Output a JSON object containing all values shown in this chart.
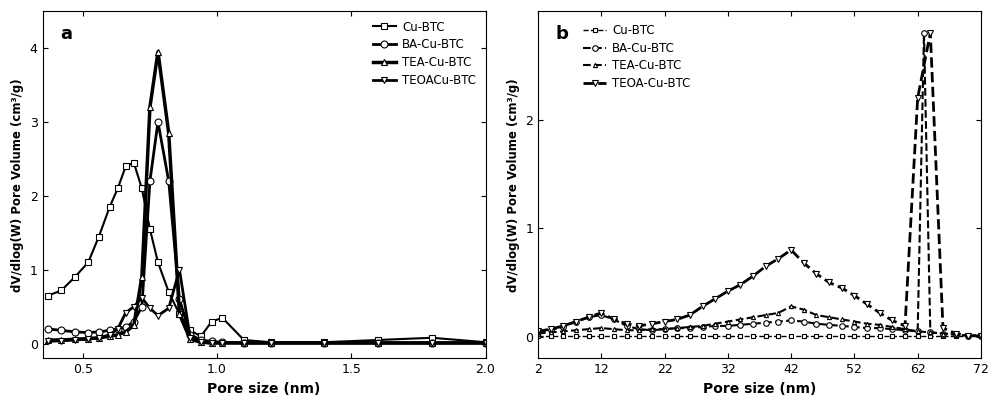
{
  "panel_a": {
    "title": "a",
    "xlabel": "Pore size (nm)",
    "ylabel": "dV/dlog(W) Pore Volume (cm³/g)",
    "xlim": [
      0.35,
      2.0
    ],
    "ylim": [
      -0.2,
      4.5
    ],
    "yticks": [
      0,
      1,
      2,
      3,
      4
    ],
    "xticks": [
      0.5,
      1.0,
      1.5,
      2.0
    ],
    "series": {
      "Cu-BTC": {
        "x": [
          0.37,
          0.42,
          0.47,
          0.52,
          0.56,
          0.6,
          0.63,
          0.66,
          0.69,
          0.72,
          0.75,
          0.78,
          0.82,
          0.86,
          0.9,
          0.94,
          0.98,
          1.02,
          1.1,
          1.2,
          1.4,
          1.6,
          1.8,
          2.0
        ],
        "y": [
          0.65,
          0.72,
          0.9,
          1.1,
          1.45,
          1.85,
          2.1,
          2.4,
          2.45,
          2.1,
          1.55,
          1.1,
          0.7,
          0.4,
          0.18,
          0.1,
          0.3,
          0.35,
          0.05,
          0.02,
          0.02,
          0.05,
          0.08,
          0.02
        ],
        "marker": "s",
        "linestyle": "-",
        "linewidth": 1.5,
        "markersize": 4
      },
      "BA-Cu-BTC": {
        "x": [
          0.37,
          0.42,
          0.47,
          0.52,
          0.56,
          0.6,
          0.63,
          0.66,
          0.69,
          0.72,
          0.75,
          0.78,
          0.82,
          0.86,
          0.9,
          0.94,
          0.98,
          1.02,
          1.1,
          1.2,
          1.4,
          1.6,
          1.8,
          2.0
        ],
        "y": [
          0.2,
          0.18,
          0.16,
          0.15,
          0.16,
          0.18,
          0.2,
          0.22,
          0.3,
          0.5,
          2.2,
          3.0,
          2.2,
          0.6,
          0.12,
          0.05,
          0.03,
          0.02,
          0.01,
          0.01,
          0.01,
          0.01,
          0.01,
          0.01
        ],
        "marker": "o",
        "linestyle": "-",
        "linewidth": 2.0,
        "markersize": 5
      },
      "TEA-Cu-BTC": {
        "x": [
          0.37,
          0.42,
          0.47,
          0.52,
          0.56,
          0.6,
          0.63,
          0.66,
          0.69,
          0.72,
          0.75,
          0.78,
          0.82,
          0.86,
          0.9,
          0.94,
          0.98,
          1.02,
          1.1,
          1.2,
          1.4,
          1.6,
          1.8,
          2.0
        ],
        "y": [
          0.05,
          0.05,
          0.06,
          0.07,
          0.08,
          0.1,
          0.12,
          0.16,
          0.25,
          0.9,
          3.2,
          3.95,
          2.85,
          0.4,
          0.06,
          0.02,
          0.01,
          0.01,
          0.01,
          0.01,
          0.01,
          0.01,
          0.01,
          0.01
        ],
        "marker": "^",
        "linestyle": "-",
        "linewidth": 2.5,
        "markersize": 5
      },
      "TEOACu-BTC": {
        "x": [
          0.37,
          0.42,
          0.47,
          0.52,
          0.56,
          0.6,
          0.63,
          0.66,
          0.69,
          0.72,
          0.75,
          0.78,
          0.82,
          0.86,
          0.9,
          0.94,
          0.98,
          1.02,
          1.1,
          1.2,
          1.4,
          1.6,
          1.8,
          2.0
        ],
        "y": [
          0.03,
          0.04,
          0.05,
          0.06,
          0.08,
          0.12,
          0.2,
          0.42,
          0.5,
          0.62,
          0.48,
          0.38,
          0.48,
          1.0,
          0.08,
          0.02,
          0.01,
          0.01,
          0.01,
          0.01,
          0.01,
          0.01,
          0.01,
          0.01
        ],
        "marker": "v",
        "linestyle": "-",
        "linewidth": 2.0,
        "markersize": 5
      }
    },
    "legend_labels": [
      "Cu-BTC",
      "BA-Cu-BTC",
      "TEA-Cu-BTC",
      "TEOACu-BTC"
    ]
  },
  "panel_b": {
    "title": "b",
    "xlabel": "Pore size (nm)",
    "ylabel": "dV/dlog(W) Pore Volume (cm³/g)",
    "xlim": [
      2,
      72
    ],
    "ylim": [
      -0.2,
      3.0
    ],
    "yticks": [
      0,
      1,
      2
    ],
    "xticks": [
      2,
      12,
      22,
      32,
      42,
      52,
      62,
      72
    ],
    "series": {
      "Cu-BTC": {
        "x": [
          2,
          4,
          6,
          8,
          10,
          12,
          14,
          16,
          18,
          20,
          22,
          24,
          26,
          28,
          30,
          32,
          34,
          36,
          38,
          40,
          42,
          44,
          46,
          48,
          50,
          52,
          54,
          56,
          58,
          60,
          62,
          64,
          66,
          68,
          70,
          72
        ],
        "y": [
          0.01,
          0.01,
          0.01,
          0.01,
          0.01,
          0.01,
          0.01,
          0.01,
          0.01,
          0.01,
          0.01,
          0.01,
          0.01,
          0.01,
          0.01,
          0.01,
          0.01,
          0.01,
          0.01,
          0.01,
          0.01,
          0.01,
          0.01,
          0.01,
          0.01,
          0.01,
          0.01,
          0.01,
          0.01,
          0.01,
          0.01,
          0.01,
          0.01,
          0.01,
          0.01,
          0.01
        ],
        "marker": "s",
        "linestyle": "--",
        "linewidth": 1.0,
        "markersize": 3
      },
      "BA-Cu-BTC": {
        "x": [
          2,
          4,
          6,
          8,
          10,
          12,
          14,
          16,
          18,
          20,
          22,
          24,
          26,
          28,
          30,
          32,
          34,
          36,
          38,
          40,
          42,
          44,
          46,
          48,
          50,
          52,
          54,
          56,
          58,
          60,
          62,
          63,
          64,
          66,
          68,
          70,
          72
        ],
        "y": [
          0.04,
          0.06,
          0.09,
          0.14,
          0.18,
          0.2,
          0.16,
          0.1,
          0.07,
          0.06,
          0.07,
          0.08,
          0.08,
          0.09,
          0.1,
          0.1,
          0.11,
          0.12,
          0.13,
          0.14,
          0.15,
          0.14,
          0.12,
          0.11,
          0.1,
          0.09,
          0.08,
          0.08,
          0.07,
          0.06,
          0.05,
          2.8,
          0.04,
          0.03,
          0.02,
          0.01,
          0.01
        ],
        "marker": "o",
        "linestyle": "--",
        "linewidth": 1.5,
        "markersize": 4
      },
      "TEA-Cu-BTC": {
        "x": [
          2,
          4,
          6,
          8,
          10,
          12,
          14,
          16,
          18,
          20,
          22,
          24,
          26,
          28,
          30,
          32,
          34,
          36,
          38,
          40,
          42,
          44,
          46,
          48,
          50,
          52,
          54,
          56,
          58,
          60,
          62,
          64,
          66,
          68,
          70,
          72
        ],
        "y": [
          0.03,
          0.04,
          0.05,
          0.06,
          0.07,
          0.08,
          0.07,
          0.06,
          0.06,
          0.07,
          0.07,
          0.08,
          0.09,
          0.1,
          0.12,
          0.14,
          0.16,
          0.18,
          0.2,
          0.22,
          0.28,
          0.25,
          0.2,
          0.18,
          0.16,
          0.14,
          0.12,
          0.11,
          0.09,
          0.07,
          0.05,
          0.04,
          0.03,
          0.02,
          0.01,
          0.01
        ],
        "marker": "^",
        "linestyle": "--",
        "linewidth": 1.5,
        "markersize": 3
      },
      "TEOA-Cu-BTC": {
        "x": [
          2,
          4,
          6,
          8,
          10,
          12,
          14,
          16,
          18,
          20,
          22,
          24,
          26,
          28,
          30,
          32,
          34,
          36,
          38,
          40,
          42,
          44,
          46,
          48,
          50,
          52,
          54,
          56,
          58,
          60,
          62,
          64,
          66,
          68,
          70,
          72
        ],
        "y": [
          0.05,
          0.07,
          0.1,
          0.14,
          0.18,
          0.22,
          0.16,
          0.12,
          0.1,
          0.12,
          0.14,
          0.16,
          0.2,
          0.28,
          0.35,
          0.42,
          0.48,
          0.56,
          0.65,
          0.72,
          0.8,
          0.68,
          0.58,
          0.5,
          0.45,
          0.38,
          0.3,
          0.22,
          0.15,
          0.1,
          2.2,
          2.8,
          0.08,
          0.03,
          0.01,
          0.01
        ],
        "marker": "v",
        "linestyle": "--",
        "linewidth": 2.0,
        "markersize": 4
      }
    },
    "legend_labels": [
      "Cu-BTC",
      "BA-Cu-BTC",
      "TEA-Cu-BTC",
      "TEOA-Cu-BTC"
    ]
  },
  "color": "#000000",
  "background": "#ffffff"
}
